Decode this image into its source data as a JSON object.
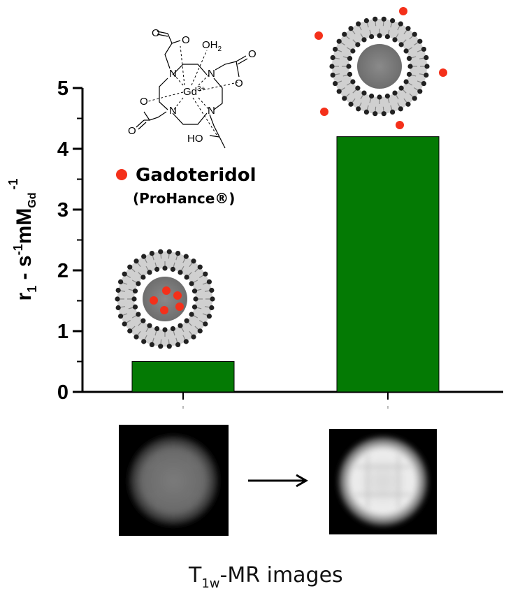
{
  "chart_data": {
    "type": "bar",
    "categories": [
      "",
      ""
    ],
    "values": [
      0.5,
      4.2
    ],
    "ylabel": {
      "main": "r",
      "sub1": "1",
      "mid": " - s",
      "sup1": "-1",
      "mm": "mM",
      "sub2": "Gd",
      "sup2": "-1"
    },
    "ylim": [
      0,
      5
    ],
    "yticks": [
      0,
      1,
      2,
      3,
      4,
      5
    ],
    "bar_color": "#047a04",
    "grid": false
  },
  "legend": {
    "name": "Gadoteridol",
    "brand": "(ProHance®)",
    "marker_color": "#f4301a"
  },
  "molecule": {
    "water": "OH",
    "water_sub": "2",
    "metal": "Gd",
    "metal_charge": "3+",
    "n": "N",
    "o": "O",
    "ho": "HO"
  },
  "caption": {
    "prefix": "T",
    "sub": "1w",
    "suffix": "-MR images"
  },
  "mr_images": [
    "dim-phantom",
    "bright-phantom"
  ]
}
